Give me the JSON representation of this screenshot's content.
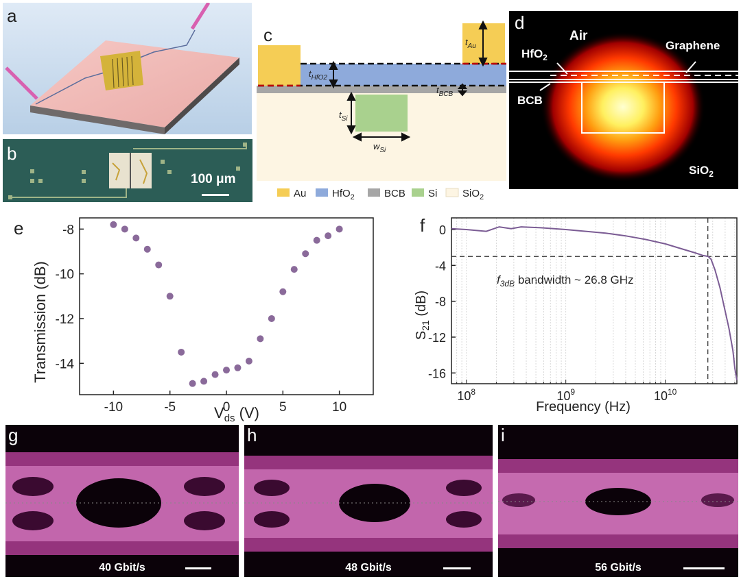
{
  "panels": {
    "a": {
      "label": "a"
    },
    "b": {
      "label": "b",
      "scale_text": "100 μm"
    },
    "c": {
      "label": "c",
      "dims": {
        "t_au": "t",
        "t_au_sub": "Au",
        "t_hfo2": "t",
        "t_hfo2_sub": "HfO2",
        "t_bcb": "t",
        "t_bcb_sub": "BCB",
        "t_si": "t",
        "t_si_sub": "Si",
        "w_si": "w",
        "w_si_sub": "Si"
      },
      "legend": [
        {
          "name": "Au",
          "text": "Au",
          "color": "#f5cd55"
        },
        {
          "name": "HfO2",
          "text": "HfO",
          "sub": "2",
          "color": "#8eaadb"
        },
        {
          "name": "BCB",
          "text": "BCB",
          "color": "#a6a6a6"
        },
        {
          "name": "Si",
          "text": "Si",
          "color": "#a9d18e"
        },
        {
          "name": "SiO2",
          "text": "SiO",
          "sub": "2",
          "color": "#fdf5e3"
        }
      ]
    },
    "d": {
      "label": "d",
      "air": "Air",
      "hfo2": "HfO",
      "hfo2_sub": "2",
      "graphene": "Graphene",
      "bcb": "BCB",
      "sio2": "SiO",
      "sio2_sub": "2"
    },
    "e": {
      "label": "e"
    },
    "f": {
      "label": "f",
      "annotation_f": "f",
      "annotation_sub": "3dB",
      "annotation_rest": " bandwidth ~ 26.8 GHz"
    },
    "g": {
      "label": "g",
      "rate": "40 Gbit/s"
    },
    "h": {
      "label": "h",
      "rate": "48 Gbit/s"
    },
    "i": {
      "label": "i",
      "rate": "56 Gbit/s"
    }
  },
  "chart_data": [
    {
      "id": "e",
      "type": "scatter",
      "title": "",
      "xlabel": "V",
      "xlabel_sub": "ds",
      "xlabel_unit": " (V)",
      "ylabel": "Transmission (dB)",
      "xlim": [
        -13,
        13
      ],
      "ylim": [
        -15.4,
        -7.5
      ],
      "xticks": [
        -10,
        -5,
        0,
        5,
        10
      ],
      "yticks": [
        -8,
        -10,
        -12,
        -14
      ],
      "x": [
        -10,
        -9,
        -8,
        -7,
        -6,
        -5,
        -4,
        -3,
        -2,
        -1,
        0,
        1,
        2,
        3,
        4,
        5,
        6,
        7,
        8,
        9,
        10
      ],
      "y": [
        -7.8,
        -8.0,
        -8.4,
        -8.9,
        -9.6,
        -11.0,
        -13.5,
        -14.9,
        -14.8,
        -14.5,
        -14.3,
        -14.2,
        -13.9,
        -12.9,
        -12.0,
        -10.8,
        -9.8,
        -9.1,
        -8.5,
        -8.3,
        -8.0
      ],
      "color": "#8a6a9a"
    },
    {
      "id": "f",
      "type": "line",
      "title": "",
      "xlabel": "Frequency (Hz)",
      "ylabel": "S",
      "ylabel_sub": "21",
      "ylabel_unit": " (dB)",
      "xscale": "log",
      "xlim_log10": [
        7.85,
        10.72
      ],
      "ylim": [
        -17.2,
        1.3
      ],
      "xticks": [
        {
          "base": "10",
          "exp": "8",
          "log": 8
        },
        {
          "base": "10",
          "exp": "9",
          "log": 9
        },
        {
          "base": "10",
          "exp": "10",
          "log": 10
        }
      ],
      "yticks": [
        0,
        -4,
        -8,
        -12,
        -16
      ],
      "log10_freq": [
        7.85,
        8.0,
        8.2,
        8.33,
        8.45,
        8.55,
        8.75,
        9.0,
        9.2,
        9.4,
        9.6,
        9.8,
        10.0,
        10.15,
        10.3,
        10.38,
        10.43,
        10.46,
        10.5,
        10.55,
        10.6,
        10.64,
        10.68,
        10.7,
        10.72
      ],
      "s21": [
        0.1,
        0.0,
        -0.2,
        0.3,
        0.1,
        0.3,
        0.2,
        0.0,
        -0.2,
        -0.4,
        -0.7,
        -1.1,
        -1.6,
        -2.1,
        -2.6,
        -2.9,
        -3.0,
        -3.3,
        -4.5,
        -6.5,
        -9.0,
        -11.0,
        -13.5,
        -15.5,
        -16.8
      ],
      "ref_line_y": -3,
      "ref_line_x_ghz": 26.8,
      "color": "#7b5c94"
    }
  ]
}
